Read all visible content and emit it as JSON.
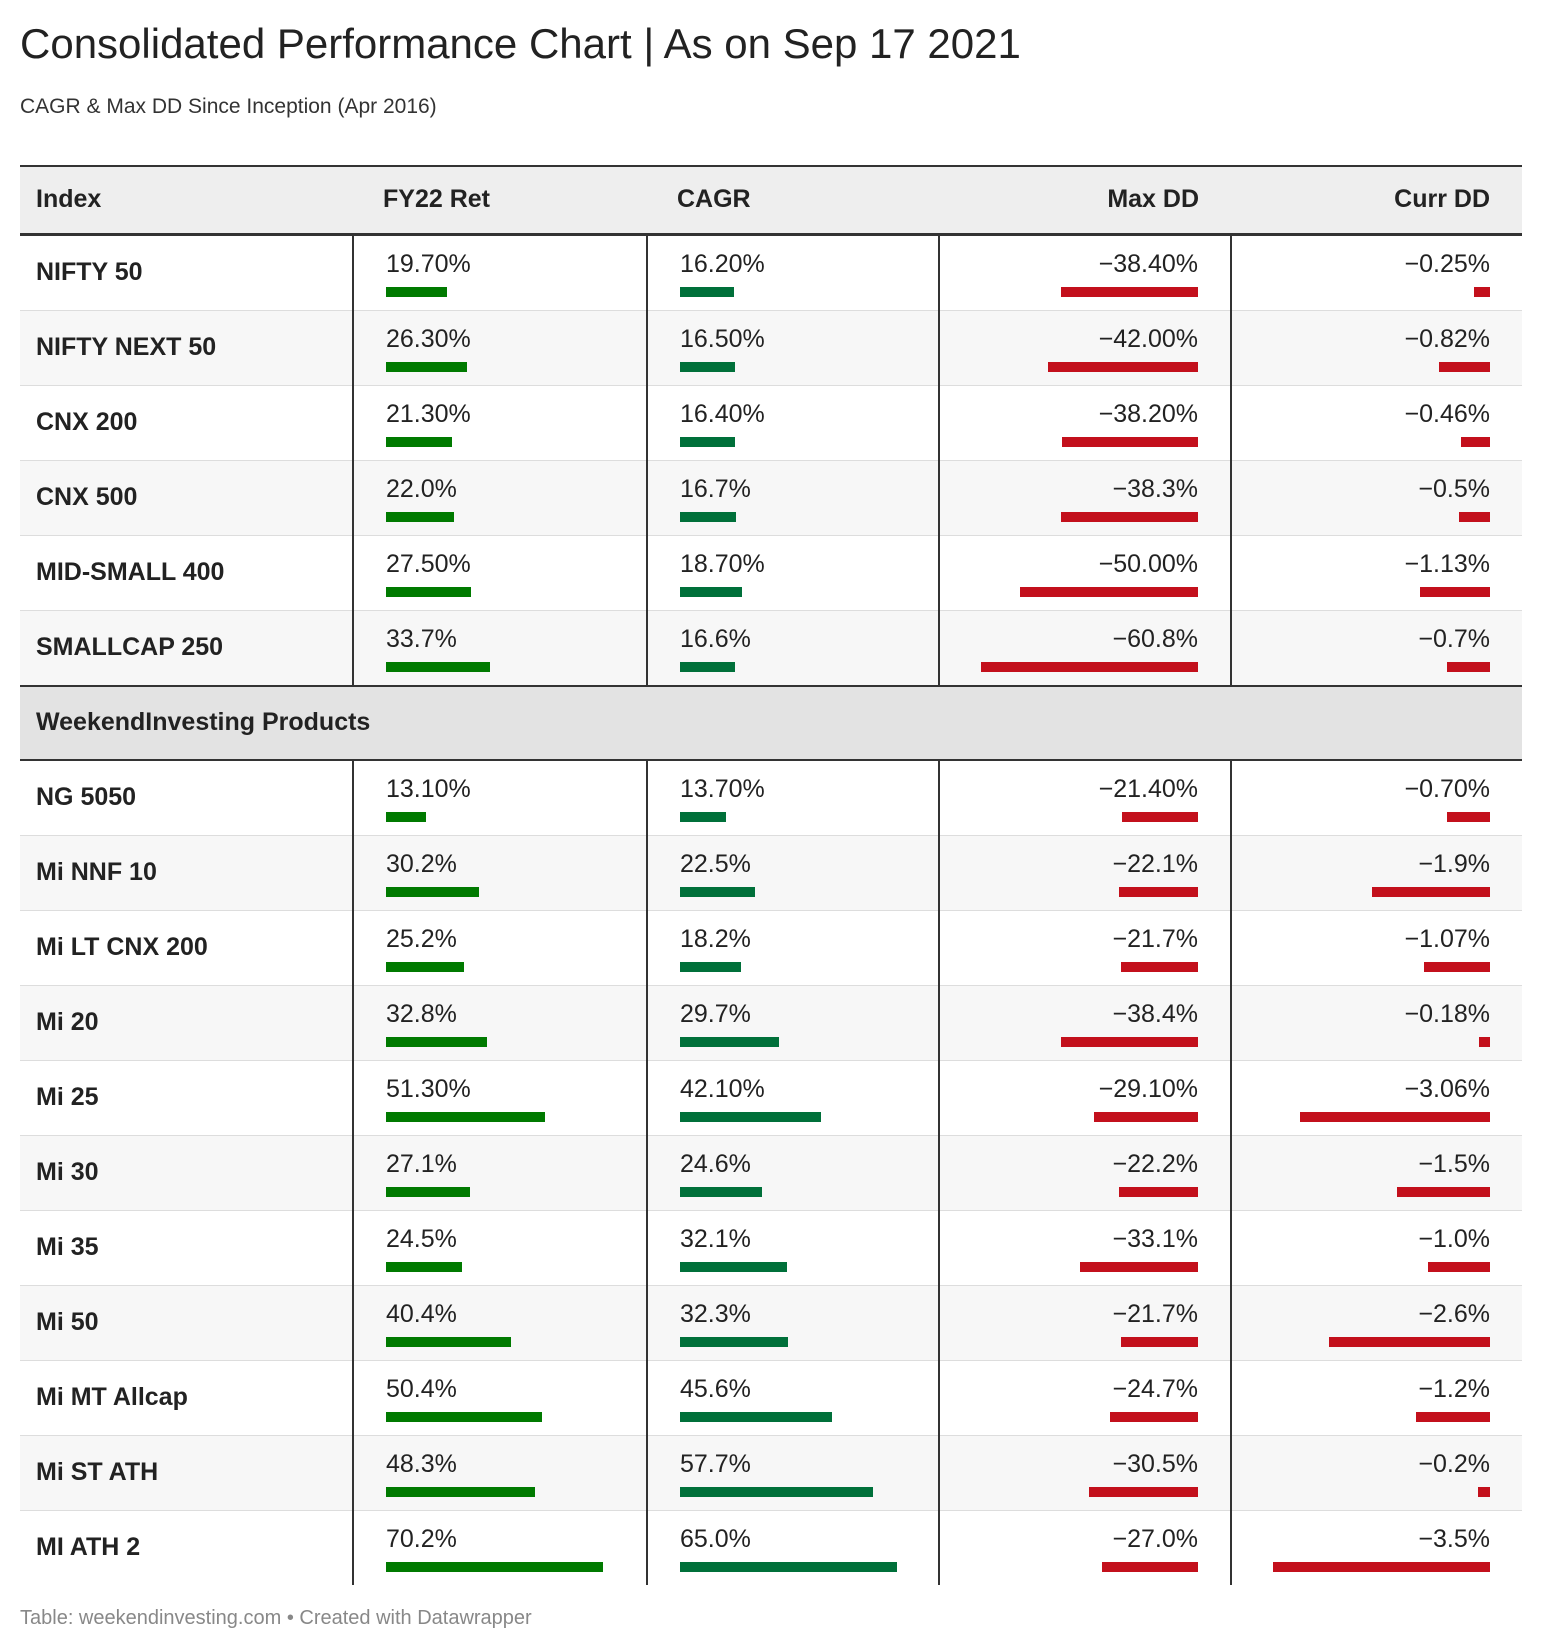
{
  "title": "Consolidated Performance Chart | As on Sep 17 2021",
  "subtitle": "CAGR & Max DD Since Inception (Apr 2016)",
  "footer": "Table: weekendinvesting.com • Created with Datawrapper",
  "colors": {
    "fy22_bar": "#007a00",
    "cagr_bar": "#00703a",
    "dd_bar": "#c3101c"
  },
  "chart_data": {
    "type": "table",
    "columns": [
      "Index",
      "FY22 Ret",
      "CAGR",
      "Max DD",
      "Curr DD"
    ],
    "scales": {
      "fy22_max": 70.2,
      "cagr_max": 65.0,
      "maxdd_max": 60.8,
      "currdd_max": 3.5
    },
    "groups": [
      {
        "section_title": "",
        "rows": [
          {
            "name": "NIFTY 50",
            "fy22": "19.70%",
            "fy22_v": 19.7,
            "cagr": "16.20%",
            "cagr_v": 16.2,
            "maxdd": "−38.40%",
            "maxdd_v": -38.4,
            "currdd": "−0.25%",
            "currdd_v": -0.25
          },
          {
            "name": "NIFTY NEXT 50",
            "fy22": "26.30%",
            "fy22_v": 26.3,
            "cagr": "16.50%",
            "cagr_v": 16.5,
            "maxdd": "−42.00%",
            "maxdd_v": -42.0,
            "currdd": "−0.82%",
            "currdd_v": -0.82
          },
          {
            "name": "CNX 200",
            "fy22": "21.30%",
            "fy22_v": 21.3,
            "cagr": "16.40%",
            "cagr_v": 16.4,
            "maxdd": "−38.20%",
            "maxdd_v": -38.2,
            "currdd": "−0.46%",
            "currdd_v": -0.46
          },
          {
            "name": "CNX 500",
            "fy22": "22.0%",
            "fy22_v": 22.0,
            "cagr": "16.7%",
            "cagr_v": 16.7,
            "maxdd": "−38.3%",
            "maxdd_v": -38.3,
            "currdd": "−0.5%",
            "currdd_v": -0.5
          },
          {
            "name": "MID-SMALL 400",
            "fy22": "27.50%",
            "fy22_v": 27.5,
            "cagr": "18.70%",
            "cagr_v": 18.7,
            "maxdd": "−50.00%",
            "maxdd_v": -50.0,
            "currdd": "−1.13%",
            "currdd_v": -1.13
          },
          {
            "name": "SMALLCAP 250",
            "fy22": "33.7%",
            "fy22_v": 33.7,
            "cagr": "16.6%",
            "cagr_v": 16.6,
            "maxdd": "−60.8%",
            "maxdd_v": -60.8,
            "currdd": "−0.7%",
            "currdd_v": -0.7
          }
        ]
      },
      {
        "section_title": "WeekendInvesting Products",
        "rows": [
          {
            "name": "NG 5050",
            "fy22": "13.10%",
            "fy22_v": 13.1,
            "cagr": "13.70%",
            "cagr_v": 13.7,
            "maxdd": "−21.40%",
            "maxdd_v": -21.4,
            "currdd": "−0.70%",
            "currdd_v": -0.7
          },
          {
            "name": "Mi NNF 10",
            "fy22": "30.2%",
            "fy22_v": 30.2,
            "cagr": "22.5%",
            "cagr_v": 22.5,
            "maxdd": "−22.1%",
            "maxdd_v": -22.1,
            "currdd": "−1.9%",
            "currdd_v": -1.9
          },
          {
            "name": "Mi LT CNX 200",
            "fy22": "25.2%",
            "fy22_v": 25.2,
            "cagr": "18.2%",
            "cagr_v": 18.2,
            "maxdd": "−21.7%",
            "maxdd_v": -21.7,
            "currdd": "−1.07%",
            "currdd_v": -1.07
          },
          {
            "name": "Mi 20",
            "fy22": "32.8%",
            "fy22_v": 32.8,
            "cagr": "29.7%",
            "cagr_v": 29.7,
            "maxdd": "−38.4%",
            "maxdd_v": -38.4,
            "currdd": "−0.18%",
            "currdd_v": -0.18
          },
          {
            "name": "Mi 25",
            "fy22": "51.30%",
            "fy22_v": 51.3,
            "cagr": "42.10%",
            "cagr_v": 42.1,
            "maxdd": "−29.10%",
            "maxdd_v": -29.1,
            "currdd": "−3.06%",
            "currdd_v": -3.06
          },
          {
            "name": "Mi 30",
            "fy22": "27.1%",
            "fy22_v": 27.1,
            "cagr": "24.6%",
            "cagr_v": 24.6,
            "maxdd": "−22.2%",
            "maxdd_v": -22.2,
            "currdd": "−1.5%",
            "currdd_v": -1.5
          },
          {
            "name": "Mi 35",
            "fy22": "24.5%",
            "fy22_v": 24.5,
            "cagr": "32.1%",
            "cagr_v": 32.1,
            "maxdd": "−33.1%",
            "maxdd_v": -33.1,
            "currdd": "−1.0%",
            "currdd_v": -1.0
          },
          {
            "name": "Mi 50",
            "fy22": "40.4%",
            "fy22_v": 40.4,
            "cagr": "32.3%",
            "cagr_v": 32.3,
            "maxdd": "−21.7%",
            "maxdd_v": -21.7,
            "currdd": "−2.6%",
            "currdd_v": -2.6
          },
          {
            "name": "Mi MT Allcap",
            "fy22": "50.4%",
            "fy22_v": 50.4,
            "cagr": "45.6%",
            "cagr_v": 45.6,
            "maxdd": "−24.7%",
            "maxdd_v": -24.7,
            "currdd": "−1.2%",
            "currdd_v": -1.2
          },
          {
            "name": "Mi ST ATH",
            "fy22": "48.3%",
            "fy22_v": 48.3,
            "cagr": "57.7%",
            "cagr_v": 57.7,
            "maxdd": "−30.5%",
            "maxdd_v": -30.5,
            "currdd": "−0.2%",
            "currdd_v": -0.2
          },
          {
            "name": "MI ATH 2",
            "fy22": "70.2%",
            "fy22_v": 70.2,
            "cagr": "65.0%",
            "cagr_v": 65.0,
            "maxdd": "−27.0%",
            "maxdd_v": -27.0,
            "currdd": "−3.5%",
            "currdd_v": -3.5
          }
        ]
      }
    ]
  }
}
